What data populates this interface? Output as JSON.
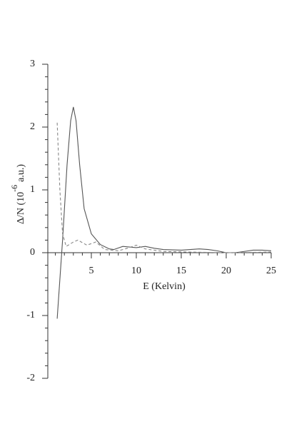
{
  "chart_data": {
    "type": "line",
    "xlabel": "E (Kelvin)",
    "ylabel": [
      "Δ/N (10",
      "-6",
      "a.u.)"
    ],
    "xlim": [
      0,
      25
    ],
    "ylim": [
      -2,
      3
    ],
    "xticks": [
      5,
      10,
      15,
      20,
      25
    ],
    "yticks": [
      -2,
      -1,
      0,
      1,
      2,
      3
    ],
    "xminorticks": [
      1,
      2,
      3,
      4,
      6,
      7,
      8,
      9,
      11,
      12,
      13,
      14,
      16,
      17,
      18,
      19,
      21,
      22,
      23,
      24
    ],
    "yminorticks": [
      -1.8,
      -1.6,
      -1.4,
      -1.2,
      -0.8,
      -0.6,
      -0.4,
      -0.2,
      0.2,
      0.4,
      0.6,
      0.8,
      1.2,
      1.4,
      1.6,
      1.8,
      2.2,
      2.4,
      2.6,
      2.8
    ],
    "series": [
      {
        "color": "#555555",
        "dash": "solid",
        "x": [
          1.2,
          1.8,
          2.3,
          2.7,
          3.0,
          3.3,
          3.7,
          4.2,
          5.0,
          6.0,
          7.0,
          7.5,
          8.5,
          10,
          11,
          12,
          13,
          15,
          17,
          18,
          19,
          20,
          21,
          22,
          23,
          24,
          25
        ],
        "values": [
          -1.05,
          0.2,
          1.4,
          2.1,
          2.32,
          2.1,
          1.4,
          0.7,
          0.3,
          0.13,
          0.06,
          0.05,
          0.1,
          0.08,
          0.1,
          0.07,
          0.05,
          0.04,
          0.06,
          0.05,
          0.03,
          0.0,
          0.0,
          0.02,
          0.04,
          0.04,
          0.03
        ]
      },
      {
        "color": "#888888",
        "dash": "dashed",
        "x": [
          1.2,
          1.5,
          1.8,
          2.2,
          3.0,
          3.5,
          4.5,
          5.5,
          6.5,
          8.0,
          9.0,
          10,
          11,
          13,
          16,
          20,
          25
        ],
        "values": [
          2.07,
          1.0,
          0.3,
          0.1,
          0.17,
          0.2,
          0.12,
          0.17,
          0.05,
          0.03,
          0.07,
          0.12,
          0.06,
          0.02,
          0.01,
          0.0,
          0.01
        ]
      }
    ]
  }
}
